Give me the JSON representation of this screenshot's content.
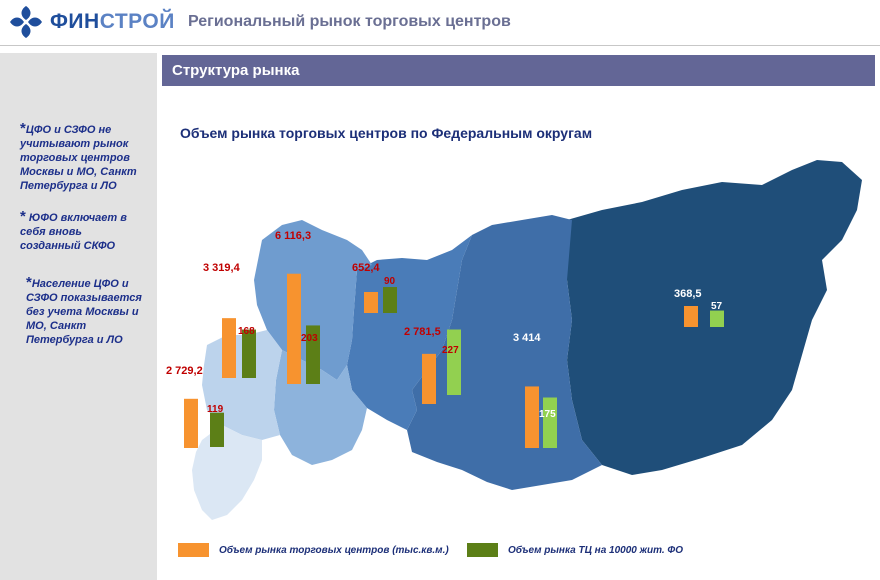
{
  "header": {
    "logo_part1": "ФИН",
    "logo_part2": "СТРОЙ",
    "title": "Региональный рынок торговых центров"
  },
  "section": {
    "title": "Структура рынка"
  },
  "sidebar": {
    "notes": [
      {
        "star": "*",
        "text": "ЦФО и СЗФО не учитывают рынок торговых центров Москвы и МО, Санкт Петербурга и ЛО"
      },
      {
        "star": "*",
        "text": " ЮФО включает в себя вновь созданный СКФО"
      },
      {
        "star": "*",
        "text": "Население ЦФО и СЗФО показывается без учета Москвы и МО, Санкт Петербурга и ЛО"
      }
    ]
  },
  "colors": {
    "orange": "#f7932f",
    "dark_green": "#5c7f17",
    "light_green": "#92d050",
    "label_red": "#c00000",
    "label_white": "#ffffff"
  },
  "chart_data": {
    "type": "bar",
    "title": "Объем рынка торговых центров по Федеральным округам",
    "series": [
      {
        "name": "Объем рынка торговых центров (тыс.кв.м.)",
        "values": [
          2729.2,
          3319.4,
          6116.3,
          652.4,
          2781.5,
          3414,
          368.5
        ]
      },
      {
        "name": "Объем рынка ТЦ на 10000 жит. ФО",
        "values": [
          119,
          168,
          203,
          90,
          227,
          175,
          57
        ]
      }
    ],
    "labels": [
      [
        "2 729,2",
        "119"
      ],
      [
        "3 319,4",
        "168"
      ],
      [
        "6 116,3",
        "203"
      ],
      [
        "652,4",
        "90"
      ],
      [
        "2 781,5",
        "227"
      ],
      [
        "3 414",
        "175"
      ],
      [
        "368,5",
        "57"
      ]
    ]
  }
}
